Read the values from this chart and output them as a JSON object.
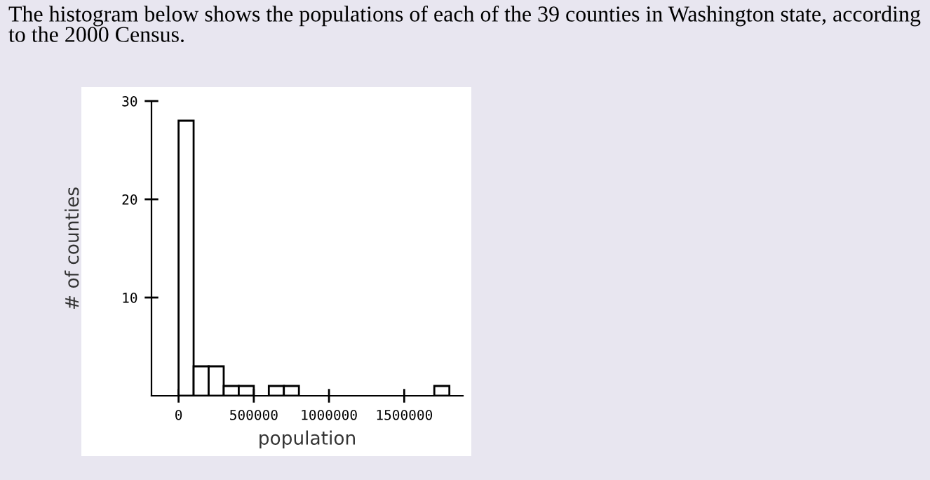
{
  "chart_data": {
    "type": "histogram",
    "title": "The histogram below shows the populations of each of the 39 counties in Washington state, according to the 2000 Census.",
    "xlabel": "population",
    "ylabel": "# of counties",
    "bins": [
      0,
      100000,
      200000,
      300000,
      400000,
      500000,
      600000,
      700000,
      800000,
      900000,
      1000000,
      1100000,
      1200000,
      1300000,
      1400000,
      1500000,
      1600000,
      1700000,
      1800000
    ],
    "values": [
      28,
      3,
      3,
      1,
      1,
      0,
      1,
      1,
      0,
      0,
      0,
      0,
      0,
      0,
      0,
      0,
      0,
      1
    ],
    "color": "#ffffff",
    "xlim": [
      -180000,
      1890000
    ],
    "xticks": [
      0,
      500000,
      1000000,
      1500000
    ],
    "ylim": [
      0,
      30
    ],
    "yticks": [
      {
        "value": 10,
        "label": "10"
      },
      {
        "value": 20,
        "label": "20"
      },
      {
        "value": 30,
        "label": "30"
      }
    ],
    "grid": false,
    "legend": false
  }
}
